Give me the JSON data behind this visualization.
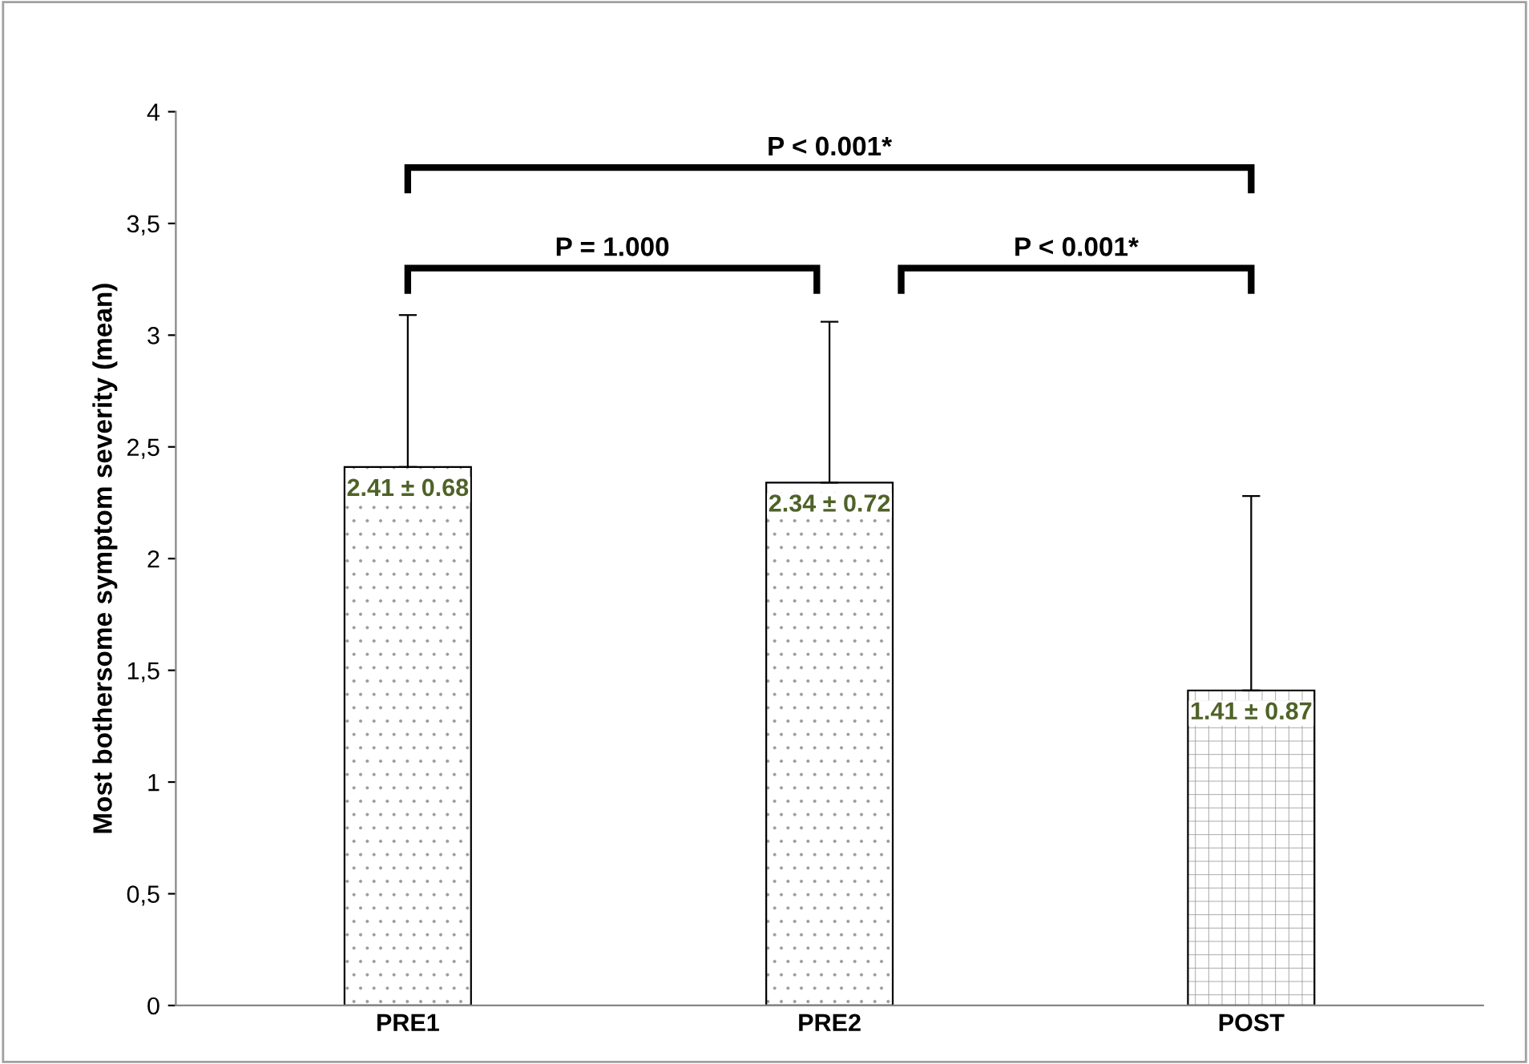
{
  "chart_data": {
    "type": "bar",
    "ylabel": "Most bothersome symptom severity (mean)",
    "categories": [
      "PRE1",
      "PRE2",
      "POST"
    ],
    "values": [
      2.41,
      2.34,
      1.41
    ],
    "errors": [
      [
        2.41,
        3.09
      ],
      [
        2.34,
        3.06
      ],
      [
        1.41,
        2.28
      ]
    ],
    "value_labels": [
      "2.41 ± 0.68",
      "2.34 ± 0.72",
      "1.41 ± 0.87"
    ],
    "colors": [
      "#ffffff",
      "#ffffff",
      "#ffffff"
    ],
    "ylim": [
      0,
      4
    ],
    "yticks": [
      0,
      {
        "value": 0.5,
        "label": "0,5"
      },
      1,
      {
        "value": 1.5,
        "label": "1,5"
      },
      2,
      {
        "value": 2.5,
        "label": "2,5"
      },
      3,
      {
        "value": 3.5,
        "label": "3,5"
      },
      4
    ],
    "annotations": [
      "P < 0.001*",
      "P = 1.000",
      "P < 0.001*"
    ],
    "grid": false,
    "legend": false
  }
}
